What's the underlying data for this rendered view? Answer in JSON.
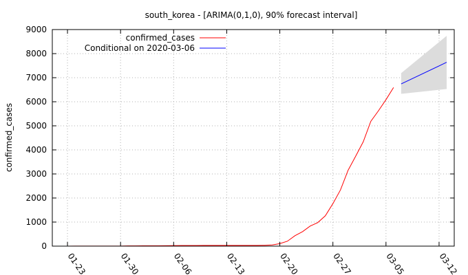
{
  "chart_data": {
    "type": "line",
    "title": "south_korea -  [ARIMA(0,1,0), 90% forecast interval]",
    "xlabel": "",
    "ylabel": "confirmed_cases",
    "ylim": [
      0,
      9000
    ],
    "yticks": [
      0,
      1000,
      2000,
      3000,
      4000,
      5000,
      6000,
      7000,
      8000,
      9000
    ],
    "xlim": [
      "2020-01-21",
      "2020-03-14"
    ],
    "xticks": [
      {
        "date": "2020-01-23",
        "label": "01-23"
      },
      {
        "date": "2020-01-30",
        "label": "01-30"
      },
      {
        "date": "2020-02-06",
        "label": "02-06"
      },
      {
        "date": "2020-02-13",
        "label": "02-13"
      },
      {
        "date": "2020-02-20",
        "label": "02-20"
      },
      {
        "date": "2020-02-27",
        "label": "02-27"
      },
      {
        "date": "2020-03-05",
        "label": "03-05"
      },
      {
        "date": "2020-03-12",
        "label": "03-12"
      }
    ],
    "grid": true,
    "legend_position": "top-left",
    "series": [
      {
        "name": "confirmed_cases",
        "color": "#ff0000",
        "points": [
          [
            "2020-01-22",
            1
          ],
          [
            "2020-01-23",
            1
          ],
          [
            "2020-01-24",
            2
          ],
          [
            "2020-01-25",
            2
          ],
          [
            "2020-01-26",
            3
          ],
          [
            "2020-01-27",
            4
          ],
          [
            "2020-01-28",
            4
          ],
          [
            "2020-01-29",
            4
          ],
          [
            "2020-01-30",
            4
          ],
          [
            "2020-01-31",
            11
          ],
          [
            "2020-02-01",
            12
          ],
          [
            "2020-02-02",
            15
          ],
          [
            "2020-02-03",
            15
          ],
          [
            "2020-02-04",
            16
          ],
          [
            "2020-02-05",
            19
          ],
          [
            "2020-02-06",
            23
          ],
          [
            "2020-02-07",
            24
          ],
          [
            "2020-02-08",
            24
          ],
          [
            "2020-02-09",
            25
          ],
          [
            "2020-02-10",
            27
          ],
          [
            "2020-02-11",
            28
          ],
          [
            "2020-02-12",
            28
          ],
          [
            "2020-02-13",
            28
          ],
          [
            "2020-02-14",
            28
          ],
          [
            "2020-02-15",
            28
          ],
          [
            "2020-02-16",
            29
          ],
          [
            "2020-02-17",
            30
          ],
          [
            "2020-02-18",
            31
          ],
          [
            "2020-02-19",
            51
          ],
          [
            "2020-02-20",
            104
          ],
          [
            "2020-02-21",
            204
          ],
          [
            "2020-02-22",
            433
          ],
          [
            "2020-02-23",
            602
          ],
          [
            "2020-02-24",
            833
          ],
          [
            "2020-02-25",
            977
          ],
          [
            "2020-02-26",
            1261
          ],
          [
            "2020-02-27",
            1766
          ],
          [
            "2020-02-28",
            2337
          ],
          [
            "2020-02-29",
            3150
          ],
          [
            "2020-03-01",
            3736
          ],
          [
            "2020-03-02",
            4335
          ],
          [
            "2020-03-03",
            5186
          ],
          [
            "2020-03-04",
            5621
          ],
          [
            "2020-03-05",
            6088
          ],
          [
            "2020-03-06",
            6593
          ]
        ]
      },
      {
        "name": "Conditional on 2020-03-06",
        "color": "#0000ff",
        "points": [
          [
            "2020-03-07",
            6740
          ],
          [
            "2020-03-13",
            7640
          ]
        ]
      }
    ],
    "forecast_interval": {
      "level": "90%",
      "color": "#dcdcdc",
      "upper": [
        [
          "2020-03-07",
          7190
        ],
        [
          "2020-03-13",
          8740
        ]
      ],
      "lower": [
        [
          "2020-03-07",
          6330
        ],
        [
          "2020-03-13",
          6530
        ]
      ]
    }
  }
}
